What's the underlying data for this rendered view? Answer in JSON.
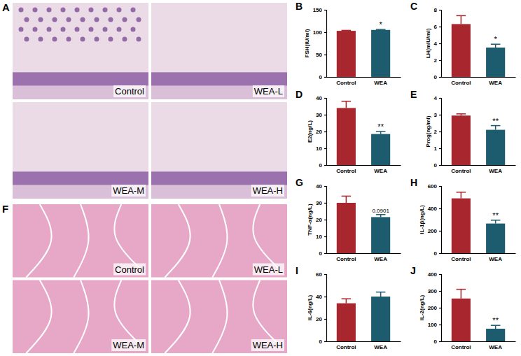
{
  "chart_data": [
    {
      "type": "bar",
      "panel": "B",
      "ylabel": "FSH(IU/ml)",
      "categories": [
        "Control",
        "WEA"
      ],
      "values": [
        103,
        105
      ],
      "errors": [
        1,
        1
      ],
      "colors": [
        "#a8262d",
        "#1d5b6e"
      ],
      "ylim": [
        0,
        150
      ],
      "yticks": [
        0,
        50,
        100,
        150
      ],
      "annotation": "*"
    },
    {
      "type": "bar",
      "panel": "C",
      "ylabel": "LH(mIU/ml)",
      "categories": [
        "Control",
        "WEA"
      ],
      "values": [
        6.3,
        3.5
      ],
      "errors": [
        1.0,
        0.4
      ],
      "colors": [
        "#a8262d",
        "#1d5b6e"
      ],
      "ylim": [
        0,
        8
      ],
      "yticks": [
        0,
        2,
        4,
        6,
        8
      ],
      "annotation": "*"
    },
    {
      "type": "bar",
      "panel": "D",
      "ylabel": "E2(ng/L)",
      "categories": [
        "Control",
        "WEA"
      ],
      "values": [
        34,
        18.5
      ],
      "errors": [
        4,
        1.5
      ],
      "colors": [
        "#a8262d",
        "#1d5b6e"
      ],
      "ylim": [
        0,
        40
      ],
      "yticks": [
        0,
        10,
        20,
        30,
        40
      ],
      "annotation": "**"
    },
    {
      "type": "bar",
      "panel": "E",
      "ylabel": "Prog(ng/ml)",
      "categories": [
        "Control",
        "WEA"
      ],
      "values": [
        2.95,
        2.1
      ],
      "errors": [
        0.1,
        0.25
      ],
      "colors": [
        "#a8262d",
        "#1d5b6e"
      ],
      "ylim": [
        0,
        4
      ],
      "yticks": [
        0,
        1,
        2,
        3,
        4
      ],
      "annotation": "**"
    },
    {
      "type": "bar",
      "panel": "G",
      "ylabel": "TNF-α(ng/L)",
      "categories": [
        "Control",
        "WEA"
      ],
      "values": [
        30,
        21.5
      ],
      "errors": [
        4,
        1.5
      ],
      "colors": [
        "#a8262d",
        "#1d5b6e"
      ],
      "ylim": [
        0,
        40
      ],
      "yticks": [
        0,
        10,
        20,
        30,
        40
      ],
      "annotation": "0.0901"
    },
    {
      "type": "bar",
      "panel": "H",
      "ylabel": "IL-1β(ng/L)",
      "categories": [
        "Control",
        "WEA"
      ],
      "values": [
        490,
        265
      ],
      "errors": [
        55,
        30
      ],
      "colors": [
        "#a8262d",
        "#1d5b6e"
      ],
      "ylim": [
        0,
        600
      ],
      "yticks": [
        0,
        200,
        400,
        600
      ],
      "annotation": "**"
    },
    {
      "type": "bar",
      "panel": "I",
      "ylabel": "IL-6(ng/L)",
      "categories": [
        "Control",
        "WEA"
      ],
      "values": [
        34,
        40
      ],
      "errors": [
        4,
        4
      ],
      "colors": [
        "#a8262d",
        "#1d5b6e"
      ],
      "ylim": [
        0,
        60
      ],
      "yticks": [
        0,
        20,
        40,
        60
      ]
    },
    {
      "type": "bar",
      "panel": "J",
      "ylabel": "IL-2(ng/L)",
      "categories": [
        "Control",
        "WEA"
      ],
      "values": [
        255,
        75
      ],
      "errors": [
        55,
        20
      ],
      "colors": [
        "#a8262d",
        "#1d5b6e"
      ],
      "ylim": [
        0,
        400
      ],
      "yticks": [
        0,
        100,
        200,
        300,
        400
      ],
      "annotation": "**"
    }
  ],
  "images": [
    {
      "panel": "A",
      "labels": [
        "Control",
        "WEA-L",
        "WEA-M",
        "WEA-H"
      ]
    },
    {
      "panel": "F",
      "labels": [
        "Control",
        "WEA-L",
        "WEA-M",
        "WEA-H"
      ]
    }
  ]
}
